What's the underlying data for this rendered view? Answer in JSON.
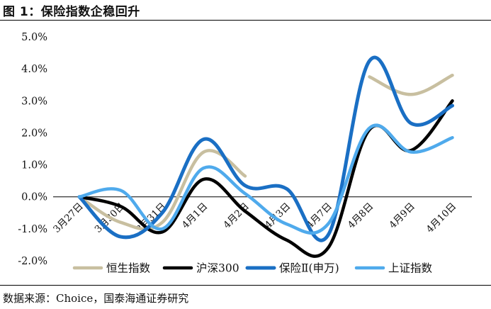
{
  "header": {
    "title": "图 1：保险指数企稳回升"
  },
  "footer": {
    "source": "数据来源：Choice，国泰海通证券研究"
  },
  "chart_data": {
    "type": "line",
    "title": "",
    "xlabel": "",
    "ylabel": "",
    "categories": [
      "3月27日",
      "3月30日",
      "3月31日",
      "4月1日",
      "4月2日",
      "4月3日",
      "4月7日",
      "4月8日",
      "4月9日",
      "4月10日"
    ],
    "ylim": [
      -2.0,
      5.0
    ],
    "yticks": [
      "5.0%",
      "4.0%",
      "3.0%",
      "2.0%",
      "1.0%",
      "0.0%",
      "-1.0%",
      "-2.0%"
    ],
    "ytick_values": [
      5,
      4,
      3,
      2,
      1,
      0,
      -1,
      -2
    ],
    "grid": false,
    "legend_position": "bottom",
    "series": [
      {
        "name": "恒生指数",
        "color": "#c8bfa0",
        "width": 4.5,
        "values": [
          0.0,
          -0.8,
          -0.8,
          1.4,
          0.65,
          null,
          null,
          3.75,
          3.2,
          3.8
        ]
      },
      {
        "name": "沪深300",
        "color": "#000000",
        "width": 4.5,
        "values": [
          0.0,
          -0.3,
          -1.1,
          0.55,
          -0.45,
          -1.35,
          -1.6,
          2.1,
          1.45,
          3.0
        ]
      },
      {
        "name": "保险Ⅱ(申万)",
        "color": "#1a6fc4",
        "width": 5,
        "values": [
          0.0,
          -1.25,
          -0.5,
          1.8,
          0.35,
          0.25,
          -1.2,
          4.25,
          2.3,
          2.85
        ]
      },
      {
        "name": "上证指数",
        "color": "#4faaec",
        "width": 4.5,
        "values": [
          0.0,
          0.2,
          -1.0,
          0.9,
          0.1,
          -0.85,
          -0.85,
          2.15,
          1.4,
          1.85
        ]
      }
    ]
  }
}
